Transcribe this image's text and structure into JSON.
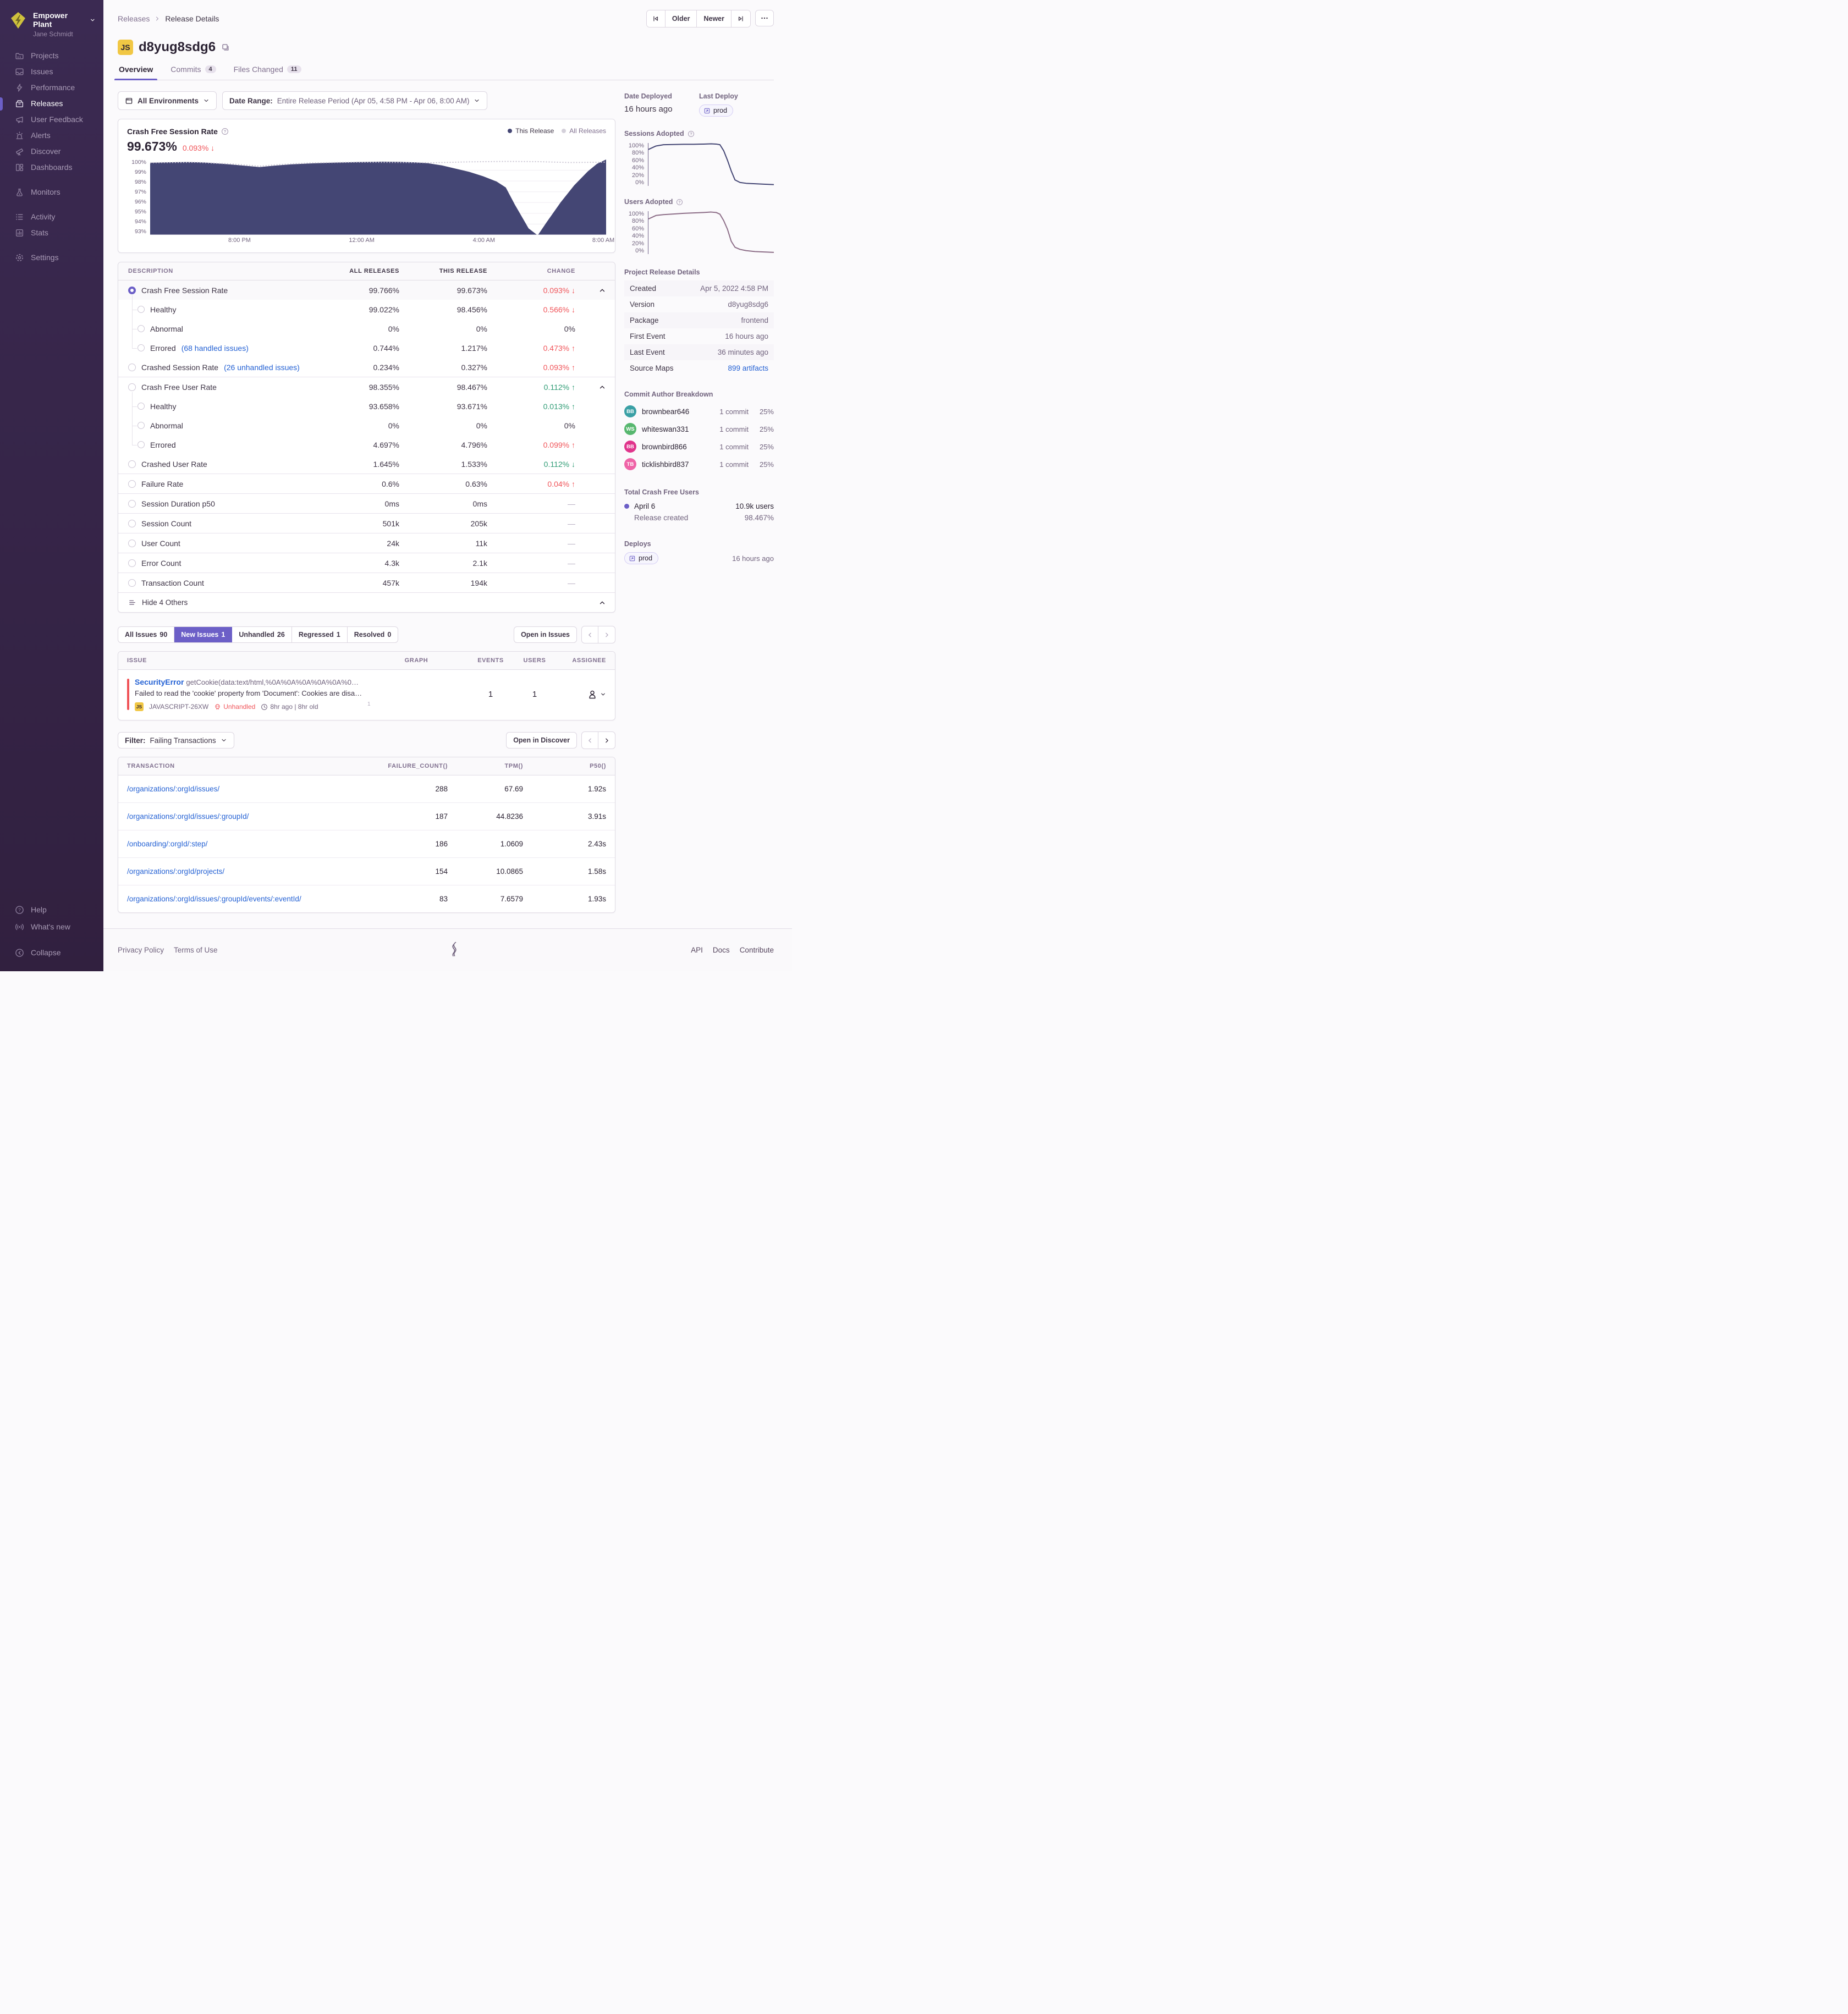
{
  "colors": {
    "accent": "#6c5fc7",
    "chart_navy": "#444674",
    "all_releases_gray": "#c9c4d2",
    "red": "#f05459",
    "green": "#2f9c75",
    "link_blue": "#2562d4",
    "platform_yellow": "#f1c744",
    "users_line": "#8d6e88"
  },
  "sidebar": {
    "org": "Empower Plant",
    "user": "Jane Schmidt",
    "groups": [
      {
        "items": [
          {
            "label": "Projects",
            "icon": "projects"
          },
          {
            "label": "Issues",
            "icon": "issues"
          },
          {
            "label": "Performance",
            "icon": "performance"
          },
          {
            "label": "Releases",
            "icon": "releases",
            "active": true
          },
          {
            "label": "User Feedback",
            "icon": "feedback"
          },
          {
            "label": "Alerts",
            "icon": "alerts"
          },
          {
            "label": "Discover",
            "icon": "discover"
          },
          {
            "label": "Dashboards",
            "icon": "dashboards"
          }
        ]
      },
      {
        "items": [
          {
            "label": "Monitors",
            "icon": "monitors"
          }
        ]
      },
      {
        "items": [
          {
            "label": "Activity",
            "icon": "activity"
          },
          {
            "label": "Stats",
            "icon": "stats"
          }
        ]
      },
      {
        "items": [
          {
            "label": "Settings",
            "icon": "settings"
          }
        ]
      }
    ],
    "bottom": [
      {
        "label": "Help",
        "icon": "help"
      },
      {
        "label": "What's new",
        "icon": "broadcast"
      },
      {
        "label": "Collapse",
        "icon": "collapse"
      }
    ]
  },
  "header": {
    "breadcrumb": [
      "Releases",
      "Release Details"
    ],
    "older": "Older",
    "newer": "Newer",
    "platform_badge": "JS",
    "title": "d8yug8sdg6",
    "tabs": [
      {
        "label": "Overview",
        "active": true
      },
      {
        "label": "Commits",
        "count": "4"
      },
      {
        "label": "Files Changed",
        "count": "11"
      }
    ]
  },
  "filters": {
    "environments": "All Environments",
    "date_range_label": "Date Range:",
    "date_range_value": "Entire Release Period (Apr 05, 4:58 PM - Apr 06, 8:00 AM)"
  },
  "chart": {
    "title": "Crash Free Session Rate",
    "value": "99.673%",
    "change": "0.093%",
    "change_dir": "down",
    "legend": [
      {
        "label": "This Release"
      },
      {
        "label": "All Releases"
      }
    ],
    "y_ticks": [
      "100%",
      "99%",
      "98%",
      "97%",
      "96%",
      "95%",
      "94%",
      "93%"
    ],
    "x_ticks": [
      {
        "label": "8:00 PM",
        "pos": 19.6
      },
      {
        "label": "12:00 AM",
        "pos": 46.4
      },
      {
        "label": "4:00 AM",
        "pos": 73.2
      },
      {
        "label": "8:00 AM",
        "pos": 99.4
      }
    ],
    "release_created": "Release Created"
  },
  "chart_data": [
    {
      "id": "crash_free_session_rate",
      "type": "area",
      "title": "Crash Free Session Rate",
      "ylim": [
        93,
        100
      ],
      "ylabel": "%",
      "x_ticks": [
        "8:00 PM",
        "12:00 AM",
        "4:00 AM",
        "8:00 AM"
      ],
      "series": [
        {
          "name": "This Release",
          "style": "area",
          "points": [
            [
              0,
              99.7
            ],
            [
              4,
              99.74
            ],
            [
              8,
              99.77
            ],
            [
              12,
              99.72
            ],
            [
              16,
              99.6
            ],
            [
              20,
              99.45
            ],
            [
              24,
              99.3
            ],
            [
              27,
              99.42
            ],
            [
              31,
              99.55
            ],
            [
              36,
              99.65
            ],
            [
              41,
              99.72
            ],
            [
              46,
              99.77
            ],
            [
              51,
              99.8
            ],
            [
              55,
              99.78
            ],
            [
              58,
              99.74
            ],
            [
              61,
              99.65
            ],
            [
              64,
              99.45
            ],
            [
              67,
              99.15
            ],
            [
              70,
              98.85
            ],
            [
              73,
              98.45
            ],
            [
              76,
              97.95
            ],
            [
              78,
              97.4
            ],
            [
              80,
              95.8
            ],
            [
              83,
              93.6
            ],
            [
              85,
              92.95
            ],
            [
              87,
              94.2
            ],
            [
              90,
              96.0
            ],
            [
              93,
              97.6
            ],
            [
              96,
              98.9
            ],
            [
              98,
              99.6
            ],
            [
              100,
              100.0
            ]
          ]
        },
        {
          "name": "All Releases",
          "style": "dotted",
          "points": [
            [
              0,
              99.7
            ],
            [
              10,
              99.74
            ],
            [
              18,
              99.58
            ],
            [
              24,
              99.38
            ],
            [
              28,
              99.52
            ],
            [
              35,
              99.68
            ],
            [
              45,
              99.75
            ],
            [
              55,
              99.72
            ],
            [
              62,
              99.7
            ],
            [
              70,
              99.78
            ],
            [
              78,
              99.82
            ],
            [
              85,
              99.8
            ],
            [
              92,
              99.72
            ],
            [
              100,
              99.75
            ]
          ]
        }
      ]
    },
    {
      "id": "sessions_adopted",
      "type": "line",
      "title": "Sessions Adopted",
      "ylim": [
        0,
        100
      ],
      "points": [
        [
          0,
          85
        ],
        [
          6,
          93
        ],
        [
          12,
          96
        ],
        [
          20,
          96.5
        ],
        [
          28,
          97
        ],
        [
          36,
          97
        ],
        [
          44,
          97.5
        ],
        [
          50,
          98
        ],
        [
          54,
          97.5
        ],
        [
          57,
          96
        ],
        [
          60,
          82
        ],
        [
          63,
          60
        ],
        [
          66,
          35
        ],
        [
          69,
          14
        ],
        [
          73,
          8
        ],
        [
          78,
          6
        ],
        [
          85,
          5
        ],
        [
          92,
          4
        ],
        [
          100,
          3
        ]
      ]
    },
    {
      "id": "users_adopted",
      "type": "line",
      "title": "Users Adopted",
      "ylim": [
        0,
        100
      ],
      "points": [
        [
          0,
          82
        ],
        [
          6,
          90
        ],
        [
          12,
          92
        ],
        [
          20,
          93.5
        ],
        [
          28,
          95
        ],
        [
          36,
          96
        ],
        [
          44,
          97
        ],
        [
          50,
          98
        ],
        [
          54,
          97
        ],
        [
          57,
          93
        ],
        [
          60,
          78
        ],
        [
          63,
          58
        ],
        [
          66,
          30
        ],
        [
          69,
          16
        ],
        [
          73,
          11
        ],
        [
          78,
          8
        ],
        [
          85,
          6
        ],
        [
          92,
          5
        ],
        [
          100,
          4
        ]
      ]
    },
    {
      "id": "issue_events_spark",
      "type": "line",
      "ylim": [
        0,
        100
      ],
      "points": [
        [
          2,
          30
        ],
        [
          10,
          30
        ],
        [
          18,
          30
        ],
        [
          26,
          30
        ],
        [
          34,
          30
        ],
        [
          42,
          30
        ],
        [
          47,
          62
        ],
        [
          52,
          30
        ],
        [
          60,
          30
        ],
        [
          68,
          30
        ],
        [
          76,
          30
        ],
        [
          84,
          30
        ],
        [
          92,
          30
        ],
        [
          98,
          30
        ]
      ],
      "label": "1"
    }
  ],
  "metrics": {
    "headers": [
      "DESCRIPTION",
      "ALL RELEASES",
      "THIS RELEASE",
      "CHANGE"
    ],
    "groups": [
      {
        "rows": [
          {
            "label": "Crash Free Session Rate",
            "radio": "checked",
            "selected": true,
            "all": "99.766%",
            "this": "99.673%",
            "change": "0.093%",
            "dir": "down",
            "tone": "neg",
            "expand": true
          },
          {
            "label": "Healthy",
            "child": true,
            "all": "99.022%",
            "this": "98.456%",
            "change": "0.566%",
            "dir": "down",
            "tone": "neg"
          },
          {
            "label": "Abnormal",
            "child": true,
            "all": "0%",
            "this": "0%",
            "change": "0%",
            "tone": "flat"
          },
          {
            "label": "Errored",
            "link": "(68 handled issues)",
            "child": true,
            "all": "0.744%",
            "this": "1.217%",
            "change": "0.473%",
            "dir": "up",
            "tone": "neg"
          },
          {
            "label": "Crashed Session Rate",
            "link": "(26 unhandled issues)",
            "all": "0.234%",
            "this": "0.327%",
            "change": "0.093%",
            "dir": "up",
            "tone": "neg"
          }
        ]
      },
      {
        "rows": [
          {
            "label": "Crash Free User Rate",
            "all": "98.355%",
            "this": "98.467%",
            "change": "0.112%",
            "dir": "up",
            "tone": "pos",
            "expand": true
          },
          {
            "label": "Healthy",
            "child": true,
            "all": "93.658%",
            "this": "93.671%",
            "change": "0.013%",
            "dir": "up",
            "tone": "pos"
          },
          {
            "label": "Abnormal",
            "child": true,
            "all": "0%",
            "this": "0%",
            "change": "0%",
            "tone": "flat"
          },
          {
            "label": "Errored",
            "child": true,
            "all": "4.697%",
            "this": "4.796%",
            "change": "0.099%",
            "dir": "up",
            "tone": "neg"
          },
          {
            "label": "Crashed User Rate",
            "all": "1.645%",
            "this": "1.533%",
            "change": "0.112%",
            "dir": "down",
            "tone": "pos"
          }
        ]
      },
      {
        "rows": [
          {
            "label": "Failure Rate",
            "all": "0.6%",
            "this": "0.63%",
            "change": "0.04%",
            "dir": "up",
            "tone": "neg"
          }
        ]
      },
      {
        "rows": [
          {
            "label": "Session Duration p50",
            "all": "0ms",
            "this": "0ms",
            "change": "—",
            "tone": "none"
          }
        ]
      },
      {
        "rows": [
          {
            "label": "Session Count",
            "all": "501k",
            "this": "205k",
            "change": "—",
            "tone": "none"
          }
        ]
      },
      {
        "rows": [
          {
            "label": "User Count",
            "all": "24k",
            "this": "11k",
            "change": "—",
            "tone": "none"
          }
        ]
      },
      {
        "rows": [
          {
            "label": "Error Count",
            "all": "4.3k",
            "this": "2.1k",
            "change": "—",
            "tone": "none"
          }
        ]
      },
      {
        "rows": [
          {
            "label": "Transaction Count",
            "all": "457k",
            "this": "194k",
            "change": "—",
            "tone": "none"
          }
        ]
      }
    ],
    "footer_label": "Hide 4 Others"
  },
  "issues": {
    "tabs": [
      {
        "label": "All Issues",
        "count": "90"
      },
      {
        "label": "New Issues",
        "count": "1",
        "active": true
      },
      {
        "label": "Unhandled",
        "count": "26"
      },
      {
        "label": "Regressed",
        "count": "1"
      },
      {
        "label": "Resolved",
        "count": "0"
      }
    ],
    "open_button": "Open in Issues",
    "headers": [
      "ISSUE",
      "GRAPH",
      "EVENTS",
      "USERS",
      "ASSIGNEE"
    ],
    "row": {
      "title": "SecurityError",
      "subtitle": "getCookie(data:text/html,%0A%0A%0A%0A%0A%0…",
      "description": "Failed to read the 'cookie' property from 'Document': Cookies are disa…",
      "platform": "JS",
      "short_id": "JAVASCRIPT-26XW",
      "unhandled": "Unhandled",
      "age": "8hr ago | 8hr old",
      "events": "1",
      "users": "1",
      "spark_label": "1"
    }
  },
  "transactions": {
    "filter_label": "Filter:",
    "filter_value": "Failing Transactions",
    "open_button": "Open in Discover",
    "headers": [
      "TRANSACTION",
      "FAILURE_COUNT()",
      "TPM()",
      "P50()"
    ],
    "rows": [
      {
        "name": "/organizations/:orgId/issues/",
        "failure": "288",
        "tpm": "67.69",
        "p50": "1.92s"
      },
      {
        "name": "/organizations/:orgId/issues/:groupId/",
        "failure": "187",
        "tpm": "44.8236",
        "p50": "3.91s"
      },
      {
        "name": "/onboarding/:orgId/:step/",
        "failure": "186",
        "tpm": "1.0609",
        "p50": "2.43s"
      },
      {
        "name": "/organizations/:orgId/projects/",
        "failure": "154",
        "tpm": "10.0865",
        "p50": "1.58s"
      },
      {
        "name": "/organizations/:orgId/issues/:groupId/events/:eventId/",
        "failure": "83",
        "tpm": "7.6579",
        "p50": "1.93s"
      }
    ]
  },
  "aside": {
    "deployed_label": "Date Deployed",
    "deployed_value": "16 hours ago",
    "last_deploy_label": "Last Deploy",
    "deploy_env": "prod",
    "sessions_adopted_title": "Sessions Adopted",
    "users_adopted_title": "Users Adopted",
    "pct_ticks": [
      "100%",
      "80%",
      "60%",
      "40%",
      "20%",
      "0%"
    ],
    "details_title": "Project Release Details",
    "details": [
      {
        "label": "Created",
        "value": "Apr 5, 2022 4:58 PM"
      },
      {
        "label": "Version",
        "value": "d8yug8sdg6"
      },
      {
        "label": "Package",
        "value": "frontend"
      },
      {
        "label": "First Event",
        "value": "16 hours ago"
      },
      {
        "label": "Last Event",
        "value": "36 minutes ago"
      },
      {
        "label": "Source Maps",
        "value": "899 artifacts",
        "link": true
      }
    ],
    "authors_title": "Commit Author Breakdown",
    "authors": [
      {
        "initials": "BB",
        "name": "brownbear646",
        "commits": "1 commit",
        "pct": "25%",
        "color": "#3aa0a5"
      },
      {
        "initials": "WS",
        "name": "whiteswan331",
        "commits": "1 commit",
        "pct": "25%",
        "color": "#57b76f"
      },
      {
        "initials": "BB",
        "name": "brownbird866",
        "commits": "1 commit",
        "pct": "25%",
        "color": "#e0348c"
      },
      {
        "initials": "TB",
        "name": "ticklishbird837",
        "commits": "1 commit",
        "pct": "25%",
        "color": "#ef63a7"
      }
    ],
    "tcfu_title": "Total Crash Free Users",
    "tcfu_rows": [
      {
        "label": "April 6",
        "value": "10.9k users",
        "dot": true
      },
      {
        "label": "Release created",
        "value": "98.467%",
        "sub": true
      }
    ],
    "deploys_title": "Deploys",
    "deploy_time": "16 hours ago"
  },
  "footer": {
    "left": [
      "Privacy Policy",
      "Terms of Use"
    ],
    "right": [
      "API",
      "Docs",
      "Contribute"
    ]
  }
}
